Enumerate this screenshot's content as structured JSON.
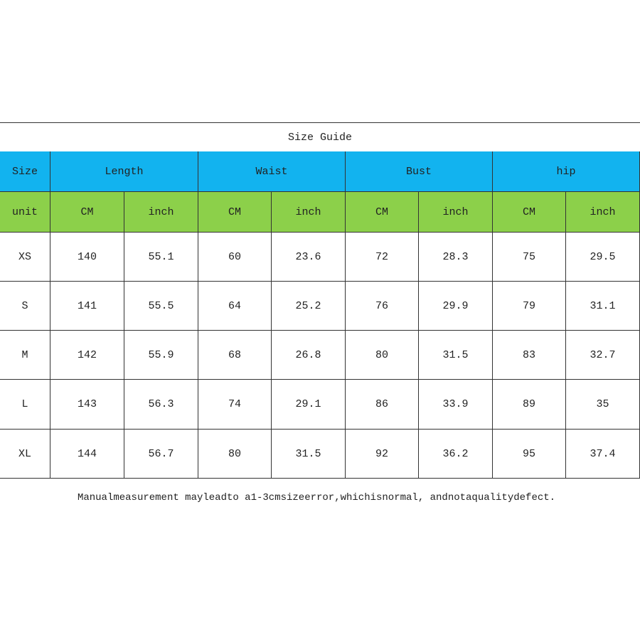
{
  "table": {
    "title": "Size Guide",
    "header": [
      "Size",
      "Length",
      "Waist",
      "Bust",
      "hip"
    ],
    "units": [
      "unit",
      "CM",
      "inch",
      "CM",
      "inch",
      "CM",
      "inch",
      "CM",
      "inch"
    ],
    "rows": [
      [
        "XS",
        140,
        55.1,
        60,
        23.6,
        72,
        28.3,
        75,
        29.5
      ],
      [
        "S",
        141,
        55.5,
        64,
        25.2,
        76,
        29.9,
        79,
        31.1
      ],
      [
        "M",
        142,
        55.9,
        68,
        26.8,
        80,
        31.5,
        83,
        32.7
      ],
      [
        "L",
        143,
        56.3,
        74,
        29.1,
        86,
        33.9,
        89,
        35
      ],
      [
        "XL",
        144,
        56.7,
        80,
        31.5,
        92,
        36.2,
        95,
        37.4
      ]
    ]
  },
  "note": "Manualmeasurement mayleadto a1-3cmsizeerror,whichisnormal, andnotaqualitydefect."
}
